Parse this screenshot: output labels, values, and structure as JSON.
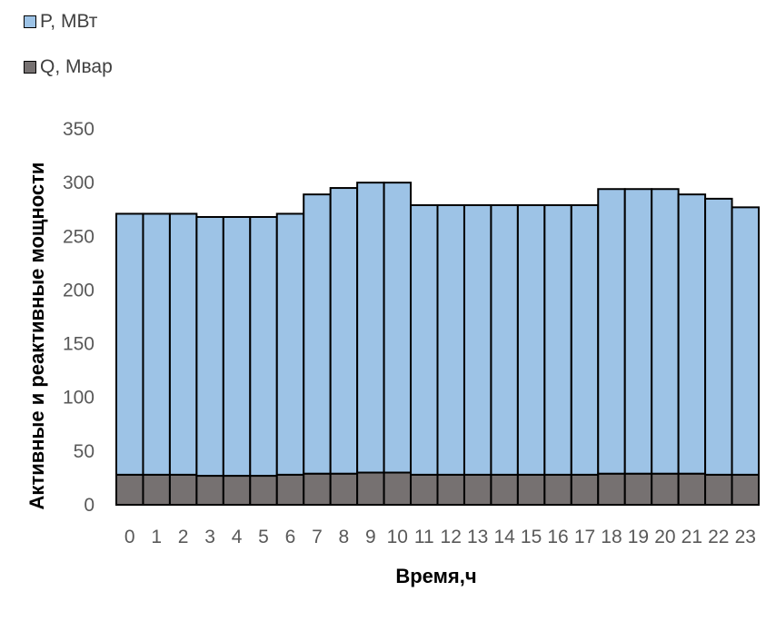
{
  "chart_data": {
    "type": "bar",
    "stacked": true,
    "categories": [
      "0",
      "1",
      "2",
      "3",
      "4",
      "5",
      "6",
      "7",
      "8",
      "9",
      "10",
      "11",
      "12",
      "13",
      "14",
      "15",
      "16",
      "17",
      "18",
      "19",
      "20",
      "21",
      "22",
      "23"
    ],
    "series": [
      {
        "name": "Q, Мвар",
        "color": "#767171",
        "values": [
          28,
          28,
          28,
          27,
          27,
          27,
          28,
          29,
          29,
          30,
          30,
          28,
          28,
          28,
          28,
          28,
          28,
          28,
          29,
          29,
          29,
          29,
          28,
          28
        ]
      },
      {
        "name": "P, МВт",
        "color": "#9dc3e6",
        "values": [
          243,
          243,
          243,
          241,
          241,
          241,
          243,
          260,
          266,
          270,
          270,
          251,
          251,
          251,
          251,
          251,
          251,
          251,
          265,
          265,
          265,
          260,
          257,
          249
        ]
      }
    ],
    "totals": [
      271,
      271,
      271,
      268,
      268,
      268,
      271,
      289,
      295,
      300,
      300,
      279,
      279,
      279,
      279,
      279,
      279,
      279,
      294,
      294,
      294,
      289,
      285,
      277
    ],
    "ylabel": "Активные и реактивные мощности",
    "xlabel": "Время,ч",
    "ylim": [
      0,
      350
    ],
    "yticks": [
      0,
      50,
      100,
      150,
      200,
      250,
      300,
      350
    ],
    "grid": false,
    "legend_position": "top-left",
    "bar_outline_color": "#000000"
  }
}
